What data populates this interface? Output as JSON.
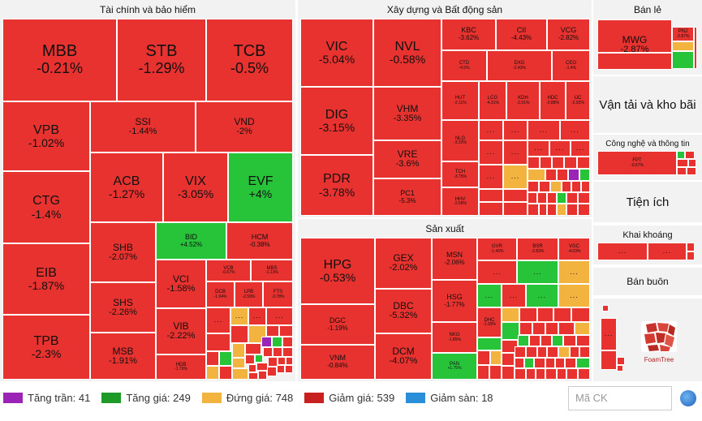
{
  "chart_data": {
    "type": "treemap",
    "sectors": [
      {
        "name": "Tài chính và bảo hiểm",
        "stocks": [
          {
            "s": "MBB",
            "c": "-0.21%"
          },
          {
            "s": "STB",
            "c": "-1.29%"
          },
          {
            "s": "TCB",
            "c": "-0.5%"
          },
          {
            "s": "VPB",
            "c": "-1.02%"
          },
          {
            "s": "SSI",
            "c": "-1.44%"
          },
          {
            "s": "VND",
            "c": "-2%"
          },
          {
            "s": "CTG",
            "c": "-1.4%"
          },
          {
            "s": "ACB",
            "c": "-1.27%"
          },
          {
            "s": "VIX",
            "c": "-3.05%"
          },
          {
            "s": "EVF",
            "c": "+4%"
          },
          {
            "s": "EIB",
            "c": "-1.87%"
          },
          {
            "s": "SHB",
            "c": "-2.07%"
          },
          {
            "s": "BID",
            "c": "+4.52%"
          },
          {
            "s": "HCM",
            "c": "-0.38%"
          },
          {
            "s": "VCI",
            "c": "-1.58%"
          },
          {
            "s": "VCB",
            "c": "-0.67%"
          },
          {
            "s": "MBS",
            "c": "-1.13%"
          },
          {
            "s": "TPB",
            "c": "-2.3%"
          },
          {
            "s": "SHS",
            "c": "-2.26%"
          },
          {
            "s": "DCB",
            "c": "-1.94%"
          },
          {
            "s": "LPB",
            "c": "-2.59%"
          },
          {
            "s": "FTS",
            "c": "-3.78%"
          },
          {
            "s": "VIB",
            "c": "-2.22%"
          },
          {
            "s": "MSB",
            "c": "-1.91%"
          },
          {
            "s": "HDB",
            "c": "-1.76%"
          }
        ]
      },
      {
        "name": "Xây dựng và Bất động sản",
        "stocks": [
          {
            "s": "VIC",
            "c": "-5.04%"
          },
          {
            "s": "NVL",
            "c": "-0.58%"
          },
          {
            "s": "KBC",
            "c": "-3.62%"
          },
          {
            "s": "CII",
            "c": "-4.43%"
          },
          {
            "s": "VCG",
            "c": "-2.82%"
          },
          {
            "s": "CTD",
            "c": "-4.5%"
          },
          {
            "s": "DXG",
            "c": "-2.43%"
          },
          {
            "s": "CEO",
            "c": "-1.4%"
          },
          {
            "s": "DIG",
            "c": "-3.15%"
          },
          {
            "s": "VHM",
            "c": "-3.35%"
          },
          {
            "s": "HUT",
            "c": "-2.11%"
          },
          {
            "s": "LCG",
            "c": "-4.31%"
          },
          {
            "s": "KDH",
            "c": "-2.01%"
          },
          {
            "s": "HDC",
            "c": "-2.88%"
          },
          {
            "s": "IJC",
            "c": "-2.92%"
          },
          {
            "s": "NLG",
            "c": "-3.33%"
          },
          {
            "s": "VRE",
            "c": "-3.6%"
          },
          {
            "s": "TCH",
            "c": "-3.75%"
          },
          {
            "s": "PDR",
            "c": "-3.78%"
          },
          {
            "s": "PC1",
            "c": "-5.3%"
          },
          {
            "s": "HHV",
            "c": "-2.58%"
          }
        ]
      },
      {
        "name": "Sản xuất",
        "stocks": [
          {
            "s": "HPG",
            "c": "-0.53%"
          },
          {
            "s": "GEX",
            "c": "-2.02%"
          },
          {
            "s": "MSN",
            "c": "-2.06%"
          },
          {
            "s": "GVR",
            "c": "-1.40%"
          },
          {
            "s": "BSR",
            "c": "-2.83%"
          },
          {
            "s": "VGC",
            "c": "-4.03%"
          },
          {
            "s": "DBC",
            "c": "-5.32%"
          },
          {
            "s": "HSG",
            "c": "-1.77%"
          },
          {
            "s": "DGC",
            "c": "-1.19%"
          },
          {
            "s": "NKG",
            "c": "-1.85%"
          },
          {
            "s": "VNM",
            "c": "-0.84%"
          },
          {
            "s": "DCM",
            "c": "-4.07%"
          },
          {
            "s": "DHC",
            "c": "-1.39%"
          },
          {
            "s": "PAN",
            "c": "+1.75%"
          }
        ]
      },
      {
        "name": "Bán lẻ",
        "stocks": [
          {
            "s": "MWG",
            "c": "-2.87%"
          },
          {
            "s": "PNJ",
            "c": "-2.87%"
          }
        ]
      },
      {
        "name": "Vận tải và kho bãi",
        "stocks": []
      },
      {
        "name": "Công nghệ và thông tin",
        "stocks": [
          {
            "s": "FPT",
            "c": "-0.67%"
          }
        ]
      },
      {
        "name": "Tiện ích",
        "stocks": []
      },
      {
        "name": "Khai khoáng",
        "stocks": []
      },
      {
        "name": "Bán buôn",
        "stocks": []
      }
    ],
    "legend": [
      {
        "label": "Tăng trần: 41",
        "color": "#9b23b5"
      },
      {
        "label": "Tăng giá: 249",
        "color": "#1e9a28"
      },
      {
        "label": "Đứng giá: 748",
        "color": "#f2b33f"
      },
      {
        "label": "Giảm giá: 539",
        "color": "#c81f1f"
      },
      {
        "label": "Giảm sàn: 18",
        "color": "#2a8fd8"
      }
    ]
  },
  "ui": {
    "more": "...",
    "search_placeholder": "Mã CK",
    "logo_text": "FoamTree"
  }
}
